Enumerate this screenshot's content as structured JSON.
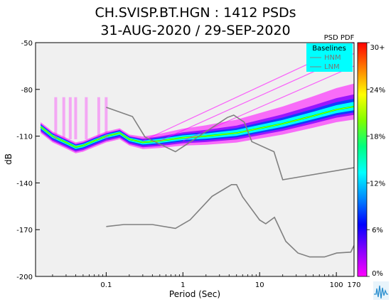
{
  "chart_data": {
    "type": "heatmap",
    "title_line1": "CH.SVISP.BT.HGN : 1412 PSDs",
    "title_line2": "31-AUG-2020 / 29-SEP-2020",
    "xlabel": "Period (Sec)",
    "ylabel": "dB",
    "x_scale": "log",
    "xlim": [
      0.012,
      170
    ],
    "ylim": [
      -200,
      -50
    ],
    "x_ticks": [
      0.1,
      1,
      10,
      100,
      170
    ],
    "x_tick_labels": [
      "0.1",
      "1",
      "10",
      "100",
      "170"
    ],
    "y_ticks": [
      -50,
      -80,
      -110,
      -140,
      -170,
      -200
    ],
    "y_tick_labels": [
      "-50",
      "-80",
      "-110",
      "-140",
      "-170",
      "-200"
    ],
    "legend": {
      "title": "PSD PDF",
      "box_title": "Baselines",
      "entries": [
        "HNM",
        "LNM"
      ],
      "position": "top-right",
      "background": "#00ffff"
    },
    "colorbar": {
      "ticks": [
        "30+",
        "24%",
        "18%",
        "12%",
        "6%",
        "0%"
      ],
      "max_percent": 30,
      "colors": [
        "#ff00ff",
        "#8800ff",
        "#0000ff",
        "#0088ff",
        "#00ffff",
        "#00ff80",
        "#80ff00",
        "#ffff00",
        "#ff8000",
        "#ff0000"
      ]
    },
    "colors": {
      "plot_background": "#f0f0f0",
      "baseline": "#808080",
      "low_density": "#ff00ff",
      "mid_density": "#8000ff",
      "high_density": "#00ffff",
      "peak_density": "#00ff00"
    },
    "series": [
      {
        "name": "HNM",
        "x": [
          0.1,
          0.22,
          0.32,
          0.8,
          3.8,
          4.6,
          6.3,
          7.9,
          15.4,
          20,
          354.8
        ],
        "y": [
          -91.5,
          -97.4,
          -110.5,
          -120,
          -98,
          -96.5,
          -101,
          -113.5,
          -120,
          -138,
          -127.5
        ]
      },
      {
        "name": "LNM",
        "x": [
          0.1,
          0.17,
          0.4,
          0.8,
          1.24,
          2.4,
          4.3,
          5,
          6,
          10,
          12,
          15.6,
          21.9,
          31.6,
          45,
          70,
          101,
          154,
          328.6,
          600,
          10000,
          100000
        ],
        "y": [
          -168,
          -166.7,
          -166.7,
          -169.2,
          -163.7,
          -148.6,
          -141.1,
          -141.1,
          -149,
          -163.8,
          -166.2,
          -162.1,
          -177.5,
          -185,
          -187.5,
          -187.5,
          -185,
          -184.4,
          -151.9,
          -162.6,
          -135,
          -71
        ]
      },
      {
        "name": "PDF mode (highest density)",
        "x": [
          0.014,
          0.02,
          0.03,
          0.04,
          0.05,
          0.07,
          0.1,
          0.15,
          0.2,
          0.3,
          0.5,
          1,
          2,
          5,
          10,
          20,
          50,
          100,
          170
        ],
        "y": [
          -104,
          -110,
          -114,
          -117,
          -116,
          -113,
          -110,
          -108,
          -112,
          -114,
          -113,
          -111,
          -110,
          -108,
          -105,
          -102,
          -97,
          -93,
          -91
        ]
      }
    ],
    "spurious_lines_db": [
      {
        "x_start": 0.3,
        "x_end": 170,
        "y_start": -113,
        "y_end": -50
      },
      {
        "x_start": 0.5,
        "x_end": 170,
        "y_start": -113,
        "y_end": -57
      },
      {
        "x_start": 1.0,
        "x_end": 170,
        "y_start": -113,
        "y_end": -65
      }
    ]
  }
}
